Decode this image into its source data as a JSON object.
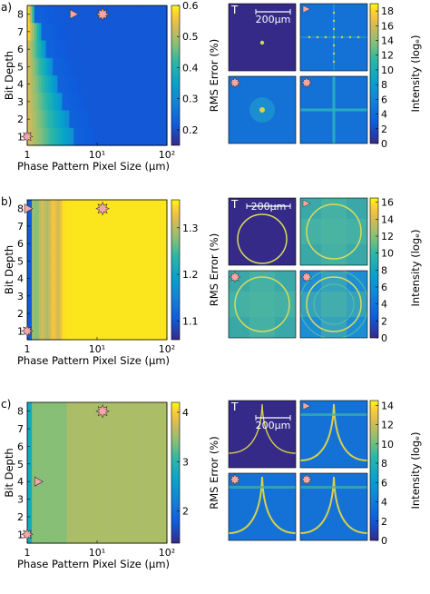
{
  "chart_data": [
    {
      "type": "heatmap",
      "panel_label": "a)",
      "xlabel": "Phase Pattern Pixel Size (μm)",
      "ylabel": "Bit Depth",
      "x_scale": "log",
      "xlim": [
        1,
        100
      ],
      "x_ticks": [
        "1",
        "10¹",
        "10²"
      ],
      "ylim": [
        1,
        8
      ],
      "y_ticks": [
        "1",
        "2",
        "3",
        "4",
        "5",
        "6",
        "7",
        "8"
      ],
      "colorbar": {
        "label": "RMS Error (%)",
        "range": [
          0.15,
          0.6
        ],
        "ticks": [
          "0.2",
          "0.3",
          "0.4",
          "0.5",
          "0.6"
        ]
      },
      "markers": [
        {
          "symbol": "triangle",
          "x": 4.5,
          "y": 8
        },
        {
          "symbol": "star",
          "x": 12,
          "y": 8
        },
        {
          "symbol": "star-small",
          "x": 1,
          "y": 1
        }
      ],
      "thumbnails": {
        "labels": [
          "T"
        ],
        "scalebar": "200μm",
        "content": [
          "point",
          "cross-grid",
          "point-halo",
          "cross-strong"
        ],
        "colorbar": {
          "label": "Intensity (logₑ)",
          "range": [
            0,
            19
          ],
          "ticks": [
            "0",
            "2",
            "4",
            "6",
            "8",
            "10",
            "12",
            "14",
            "16",
            "18"
          ]
        }
      }
    },
    {
      "type": "heatmap",
      "panel_label": "b)",
      "xlabel": "Phase Pattern Pixel Size (μm)",
      "ylabel": "Bit Depth",
      "x_scale": "log",
      "xlim": [
        1,
        100
      ],
      "x_ticks": [
        "1",
        "10¹",
        "10²"
      ],
      "ylim": [
        1,
        8
      ],
      "y_ticks": [
        "1",
        "2",
        "3",
        "4",
        "5",
        "6",
        "7",
        "8"
      ],
      "colorbar": {
        "label": "RMS Error (%)",
        "range": [
          1.06,
          1.36
        ],
        "ticks": [
          "1.1",
          "1.2",
          "1.3"
        ]
      },
      "markers": [
        {
          "symbol": "triangle",
          "x": 1,
          "y": 8
        },
        {
          "symbol": "star",
          "x": 12,
          "y": 8
        },
        {
          "symbol": "star-small",
          "x": 1,
          "y": 1
        }
      ],
      "thumbnails": {
        "labels": [
          "T"
        ],
        "scalebar": "200μm",
        "content": [
          "ring",
          "ring-grid",
          "ring-grid-star",
          "ring-rings"
        ],
        "colorbar": {
          "label": "Intensity (logₑ)",
          "range": [
            0,
            16.5
          ],
          "ticks": [
            "0",
            "2",
            "4",
            "6",
            "8",
            "10",
            "12",
            "14",
            "16"
          ]
        }
      }
    },
    {
      "type": "heatmap",
      "panel_label": "c)",
      "xlabel": "Phase Pattern Pixel Size (μm)",
      "ylabel": "Bit Depth",
      "x_scale": "log",
      "xlim": [
        1,
        100
      ],
      "x_ticks": [
        "1",
        "10¹",
        "10²"
      ],
      "ylim": [
        1,
        8
      ],
      "y_ticks": [
        "1",
        "2",
        "3",
        "4",
        "5",
        "6",
        "7",
        "8"
      ],
      "colorbar": {
        "label": "RMS Error (%)",
        "range": [
          1.35,
          4.2
        ],
        "ticks": [
          "2",
          "3",
          "4"
        ]
      },
      "markers": [
        {
          "symbol": "triangle",
          "x": 1.4,
          "y": 4
        },
        {
          "symbol": "star",
          "x": 12,
          "y": 8
        },
        {
          "symbol": "star-small",
          "x": 1,
          "y": 1
        }
      ],
      "thumbnails": {
        "labels": [
          "T"
        ],
        "scalebar": "200μm",
        "content": [
          "curve",
          "curve-blur",
          "curve-noise",
          "curve-noise2"
        ],
        "colorbar": {
          "label": "Intensity (logₑ)",
          "range": [
            0,
            14.5
          ],
          "ticks": [
            "0",
            "2",
            "4",
            "6",
            "8",
            "10",
            "12",
            "14"
          ]
        }
      }
    }
  ]
}
